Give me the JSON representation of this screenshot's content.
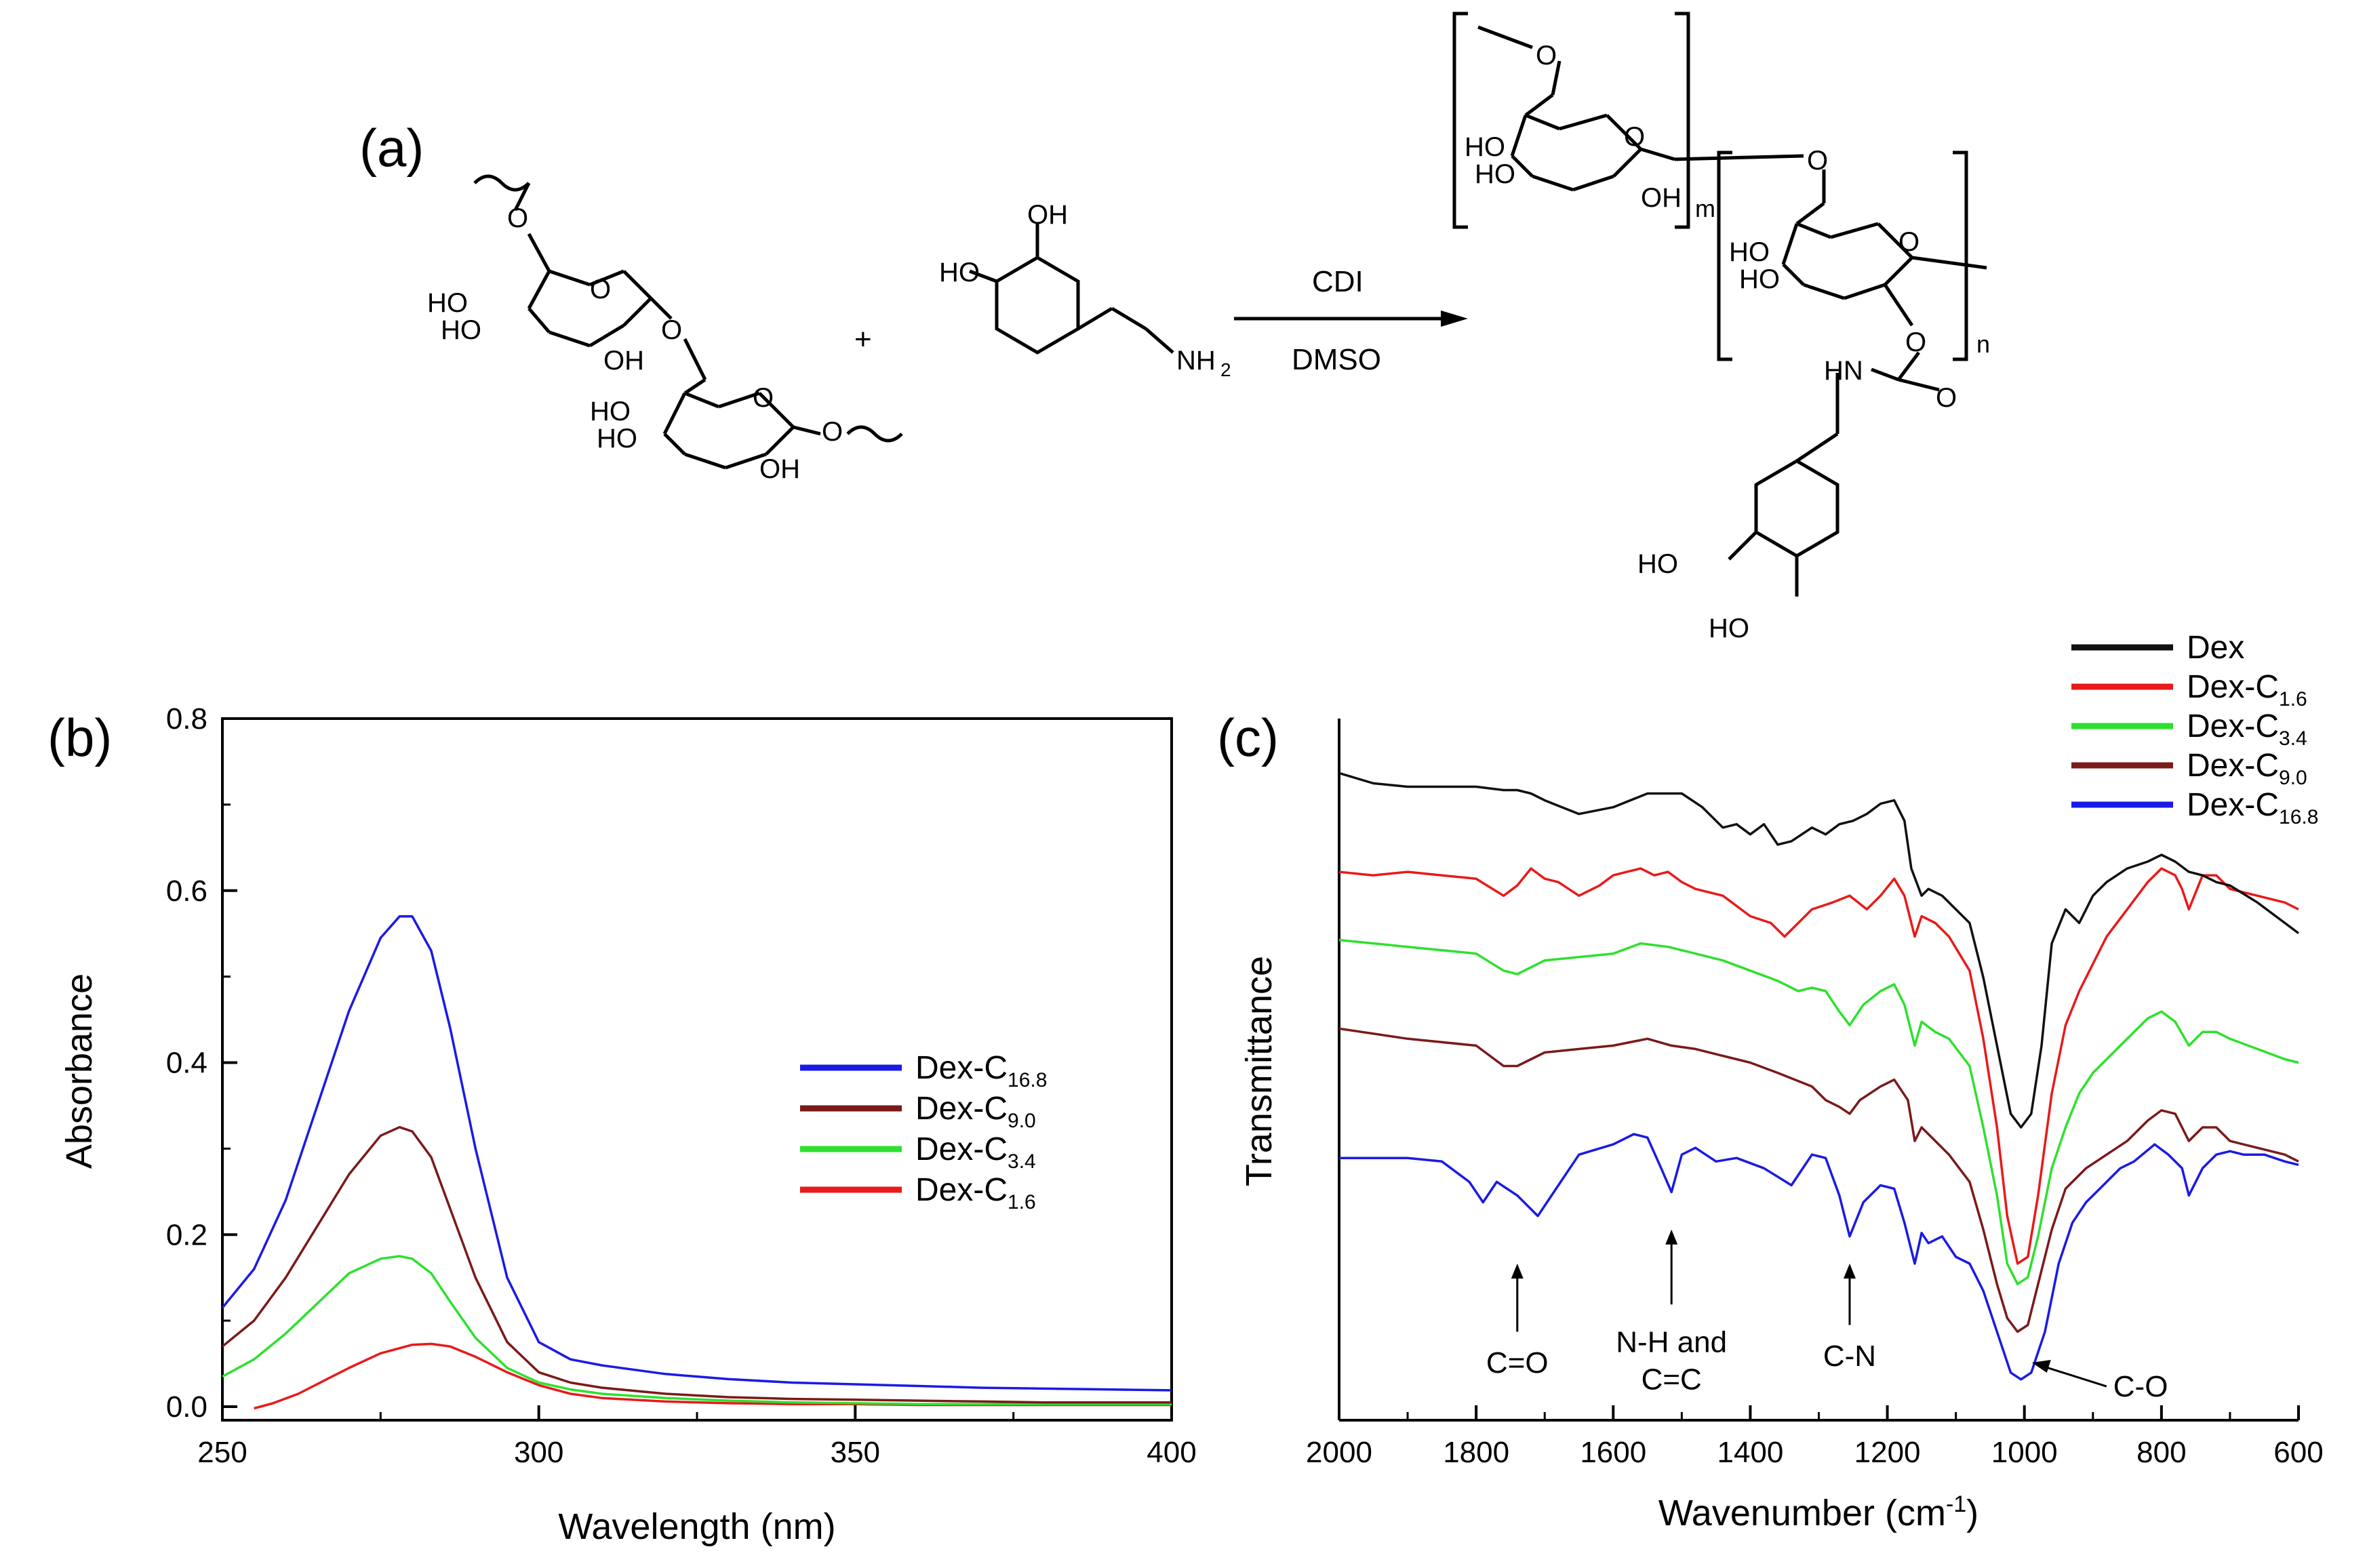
{
  "panel_labels": {
    "a": "(a)",
    "b": "(b)",
    "c": "(c)"
  },
  "scheme": {
    "plus": "+",
    "reagent_top": "CDI",
    "reagent_bottom": "DMSO",
    "dextran_labels": [
      "HO",
      "HO",
      "OH",
      "O",
      "O",
      "O",
      "HO",
      "HO",
      "OH",
      "O",
      "O"
    ],
    "dopamine_labels": [
      "OH",
      "HO",
      "NH",
      "2"
    ],
    "product_labels": [
      "O",
      "HO",
      "HO",
      "OH",
      "O",
      "m",
      "O",
      "HO",
      "HO",
      "O",
      "O",
      "n",
      "HN",
      "O",
      "HO",
      "HO"
    ]
  },
  "chart_data": [
    {
      "type": "line",
      "title": "",
      "xlabel": "Wavelength (nm)",
      "ylabel": "Absorbance",
      "xlim": [
        250,
        400
      ],
      "ylim": [
        0.0,
        0.8
      ],
      "xticks": [
        250,
        300,
        350,
        400
      ],
      "yticks": [
        "0.0",
        "0.2",
        "0.4",
        "0.6",
        "0.8"
      ],
      "legend_position": "center-right",
      "series": [
        {
          "name": "Dex-C",
          "sub": "16.8",
          "color": "#1a1ae6",
          "x": [
            250,
            255,
            260,
            265,
            270,
            275,
            278,
            280,
            283,
            286,
            290,
            295,
            300,
            305,
            310,
            320,
            330,
            340,
            350,
            360,
            370,
            380,
            390,
            400
          ],
          "y": [
            0.115,
            0.16,
            0.24,
            0.35,
            0.46,
            0.545,
            0.57,
            0.57,
            0.53,
            0.44,
            0.3,
            0.15,
            0.075,
            0.055,
            0.048,
            0.038,
            0.032,
            0.028,
            0.026,
            0.024,
            0.022,
            0.021,
            0.02,
            0.019
          ]
        },
        {
          "name": "Dex-C",
          "sub": "9.0",
          "color": "#7a1a1a",
          "x": [
            250,
            255,
            260,
            265,
            270,
            275,
            278,
            280,
            283,
            286,
            290,
            295,
            300,
            305,
            310,
            320,
            330,
            340,
            350,
            360,
            370,
            380,
            390,
            400
          ],
          "y": [
            0.07,
            0.1,
            0.15,
            0.21,
            0.27,
            0.315,
            0.325,
            0.32,
            0.29,
            0.23,
            0.15,
            0.075,
            0.04,
            0.028,
            0.022,
            0.015,
            0.011,
            0.009,
            0.008,
            0.007,
            0.006,
            0.005,
            0.005,
            0.005
          ]
        },
        {
          "name": "Dex-C",
          "sub": "3.4",
          "color": "#2ee02e",
          "x": [
            250,
            255,
            260,
            265,
            270,
            275,
            278,
            280,
            283,
            286,
            290,
            295,
            300,
            305,
            310,
            320,
            330,
            340,
            350,
            360,
            370,
            380,
            390,
            400
          ],
          "y": [
            0.035,
            0.055,
            0.085,
            0.12,
            0.155,
            0.172,
            0.175,
            0.172,
            0.155,
            0.122,
            0.08,
            0.045,
            0.028,
            0.02,
            0.015,
            0.01,
            0.007,
            0.005,
            0.004,
            0.003,
            0.003,
            0.003,
            0.003,
            0.003
          ]
        },
        {
          "name": "Dex-C",
          "sub": "1.6",
          "color": "#e81a1a",
          "x": [
            255,
            258,
            262,
            266,
            270,
            275,
            280,
            283,
            286,
            290,
            295,
            300,
            305,
            310,
            320,
            330,
            340,
            350,
            360,
            370,
            380,
            390,
            400
          ],
          "y": [
            -0.002,
            0.004,
            0.015,
            0.03,
            0.045,
            0.062,
            0.072,
            0.073,
            0.07,
            0.058,
            0.04,
            0.025,
            0.015,
            0.01,
            0.006,
            0.004,
            0.003,
            0.003,
            0.002,
            0.002,
            0.002,
            0.002,
            0.002
          ]
        }
      ]
    },
    {
      "type": "line",
      "title": "",
      "xlabel": "Wavenumber (cm",
      "xlabel_sup": "-1",
      "xlabel_end": ")",
      "ylabel": "Transmittance",
      "xlim": [
        2000,
        600
      ],
      "ylim": [
        0,
        1
      ],
      "xticks": [
        2000,
        1800,
        1600,
        1400,
        1200,
        1000,
        800,
        600
      ],
      "legend_position": "top-right",
      "annotations": [
        {
          "label": "C=O",
          "x": 1740,
          "y_text": 0.04,
          "y_arrow_start": 0.1,
          "y_arrow_end": 0.2
        },
        {
          "label": "N-H and",
          "label2": "C=C",
          "x": 1515,
          "y_text": 0.07,
          "y_arrow_start": 0.14,
          "y_arrow_end": 0.25
        },
        {
          "label": "C-N",
          "x": 1255,
          "y_text": 0.05,
          "y_arrow_start": 0.11,
          "y_arrow_end": 0.2
        },
        {
          "label": "C-O",
          "x": 900,
          "y_text": -0.01,
          "y_arrow_start": 0.01,
          "y_arrow_end": 0.03
        }
      ],
      "series": [
        {
          "name": "Dex-C",
          "sub": "16.8",
          "color": "#1a1ae6",
          "x": [
            2000,
            1900,
            1850,
            1810,
            1790,
            1770,
            1740,
            1710,
            1690,
            1650,
            1600,
            1570,
            1550,
            1530,
            1515,
            1500,
            1480,
            1450,
            1420,
            1380,
            1340,
            1310,
            1290,
            1270,
            1255,
            1235,
            1210,
            1190,
            1175,
            1160,
            1150,
            1140,
            1120,
            1100,
            1080,
            1060,
            1040,
            1020,
            1005,
            990,
            970,
            950,
            930,
            910,
            890,
            860,
            840,
            810,
            790,
            770,
            760,
            740,
            720,
            700,
            680,
            650,
            620,
            600
          ],
          "y": [
            0.355,
            0.355,
            0.35,
            0.32,
            0.29,
            0.32,
            0.3,
            0.27,
            0.3,
            0.36,
            0.375,
            0.39,
            0.385,
            0.34,
            0.305,
            0.36,
            0.37,
            0.35,
            0.355,
            0.34,
            0.315,
            0.36,
            0.355,
            0.3,
            0.24,
            0.29,
            0.315,
            0.31,
            0.26,
            0.2,
            0.245,
            0.23,
            0.24,
            0.21,
            0.2,
            0.16,
            0.1,
            0.04,
            0.03,
            0.04,
            0.1,
            0.2,
            0.26,
            0.29,
            0.31,
            0.34,
            0.35,
            0.375,
            0.36,
            0.34,
            0.3,
            0.34,
            0.36,
            0.365,
            0.36,
            0.36,
            0.35,
            0.345
          ]
        },
        {
          "name": "Dex-C",
          "sub": "9.0",
          "color": "#7a1a1a",
          "x": [
            2000,
            1900,
            1800,
            1760,
            1740,
            1700,
            1650,
            1600,
            1550,
            1515,
            1480,
            1440,
            1400,
            1360,
            1310,
            1290,
            1270,
            1255,
            1240,
            1210,
            1190,
            1170,
            1160,
            1150,
            1130,
            1110,
            1080,
            1060,
            1040,
            1025,
            1010,
            995,
            980,
            960,
            940,
            910,
            880,
            850,
            820,
            800,
            780,
            760,
            740,
            720,
            700,
            660,
            620,
            600
          ],
          "y": [
            0.545,
            0.53,
            0.52,
            0.49,
            0.49,
            0.51,
            0.515,
            0.52,
            0.53,
            0.52,
            0.515,
            0.505,
            0.495,
            0.48,
            0.46,
            0.44,
            0.43,
            0.42,
            0.44,
            0.46,
            0.47,
            0.44,
            0.38,
            0.4,
            0.38,
            0.36,
            0.32,
            0.25,
            0.17,
            0.12,
            0.1,
            0.11,
            0.17,
            0.25,
            0.31,
            0.34,
            0.36,
            0.38,
            0.41,
            0.425,
            0.42,
            0.38,
            0.4,
            0.4,
            0.38,
            0.37,
            0.36,
            0.35
          ]
        },
        {
          "name": "Dex-C",
          "sub": "3.4",
          "color": "#2ee02e",
          "x": [
            2000,
            1900,
            1800,
            1760,
            1740,
            1700,
            1650,
            1600,
            1560,
            1520,
            1480,
            1440,
            1400,
            1360,
            1330,
            1310,
            1290,
            1270,
            1255,
            1235,
            1210,
            1190,
            1175,
            1160,
            1150,
            1130,
            1110,
            1080,
            1060,
            1040,
            1025,
            1010,
            995,
            980,
            960,
            940,
            920,
            900,
            880,
            850,
            820,
            800,
            780,
            760,
            740,
            720,
            700,
            660,
            620,
            600
          ],
          "y": [
            0.675,
            0.665,
            0.655,
            0.63,
            0.625,
            0.645,
            0.65,
            0.655,
            0.67,
            0.665,
            0.655,
            0.645,
            0.63,
            0.615,
            0.6,
            0.605,
            0.6,
            0.57,
            0.55,
            0.58,
            0.6,
            0.61,
            0.58,
            0.52,
            0.555,
            0.54,
            0.53,
            0.49,
            0.4,
            0.3,
            0.2,
            0.17,
            0.18,
            0.24,
            0.34,
            0.4,
            0.45,
            0.48,
            0.5,
            0.53,
            0.56,
            0.57,
            0.555,
            0.52,
            0.54,
            0.54,
            0.53,
            0.515,
            0.5,
            0.495
          ]
        },
        {
          "name": "Dex-C",
          "sub": "1.6",
          "color": "#e81a1a",
          "x": [
            2000,
            1950,
            1900,
            1850,
            1800,
            1760,
            1740,
            1720,
            1700,
            1680,
            1650,
            1620,
            1600,
            1580,
            1560,
            1540,
            1520,
            1500,
            1480,
            1440,
            1400,
            1370,
            1350,
            1330,
            1310,
            1280,
            1255,
            1230,
            1210,
            1190,
            1175,
            1160,
            1150,
            1130,
            1110,
            1080,
            1060,
            1040,
            1025,
            1010,
            995,
            980,
            960,
            940,
            920,
            900,
            880,
            850,
            820,
            800,
            780,
            770,
            760,
            740,
            720,
            700,
            660,
            620,
            600
          ],
          "y": [
            0.775,
            0.77,
            0.775,
            0.77,
            0.765,
            0.74,
            0.755,
            0.78,
            0.765,
            0.76,
            0.74,
            0.755,
            0.77,
            0.775,
            0.78,
            0.77,
            0.775,
            0.76,
            0.75,
            0.74,
            0.71,
            0.7,
            0.68,
            0.7,
            0.72,
            0.73,
            0.74,
            0.72,
            0.74,
            0.765,
            0.74,
            0.68,
            0.71,
            0.7,
            0.68,
            0.63,
            0.53,
            0.4,
            0.27,
            0.2,
            0.21,
            0.3,
            0.45,
            0.55,
            0.6,
            0.64,
            0.68,
            0.72,
            0.76,
            0.78,
            0.77,
            0.75,
            0.72,
            0.77,
            0.77,
            0.75,
            0.74,
            0.73,
            0.72
          ]
        },
        {
          "name": "Dex",
          "sub": "",
          "color": "#111111",
          "x": [
            2000,
            1950,
            1900,
            1850,
            1800,
            1760,
            1740,
            1720,
            1700,
            1650,
            1600,
            1550,
            1500,
            1470,
            1440,
            1420,
            1400,
            1380,
            1360,
            1340,
            1310,
            1290,
            1270,
            1250,
            1230,
            1210,
            1190,
            1175,
            1165,
            1150,
            1140,
            1120,
            1100,
            1080,
            1060,
            1040,
            1020,
            1005,
            990,
            975,
            960,
            940,
            920,
            900,
            880,
            850,
            820,
            800,
            780,
            760,
            740,
            720,
            700,
            660,
            620,
            600
          ],
          "y": [
            0.92,
            0.905,
            0.9,
            0.9,
            0.9,
            0.895,
            0.895,
            0.89,
            0.88,
            0.86,
            0.87,
            0.89,
            0.89,
            0.87,
            0.84,
            0.845,
            0.83,
            0.845,
            0.815,
            0.82,
            0.84,
            0.83,
            0.845,
            0.85,
            0.86,
            0.875,
            0.88,
            0.85,
            0.78,
            0.74,
            0.75,
            0.74,
            0.72,
            0.7,
            0.62,
            0.52,
            0.42,
            0.4,
            0.42,
            0.52,
            0.67,
            0.72,
            0.7,
            0.74,
            0.76,
            0.78,
            0.79,
            0.8,
            0.79,
            0.775,
            0.77,
            0.76,
            0.755,
            0.73,
            0.7,
            0.685
          ]
        }
      ]
    }
  ]
}
